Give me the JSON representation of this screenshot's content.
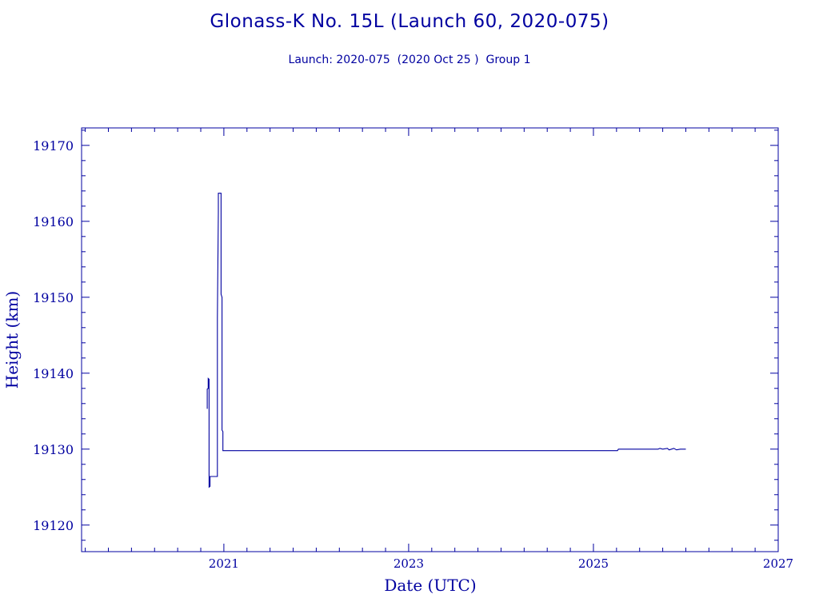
{
  "colors": {
    "axis": "#0000a0",
    "series": "#0000a0",
    "background": "#ffffff"
  },
  "chart_data": {
    "type": "line",
    "title": "Glonass-K No. 15L (Launch 60, 2020-075)",
    "subtitle": "Launch: 2020-075  (2020 Oct 25 )  Group 1",
    "xlabel": "Date (UTC)",
    "ylabel": "Height (km)",
    "xlim": [
      2019.46,
      2027.0
    ],
    "ylim": [
      19116.5,
      19172.3
    ],
    "x_ticks": [
      2021,
      2023,
      2025,
      2027
    ],
    "x_tick_labels": [
      "2021",
      "2023",
      "2025",
      "2027"
    ],
    "y_ticks": [
      19120,
      19130,
      19140,
      19150,
      19160,
      19170
    ],
    "y_tick_labels": [
      "19120",
      "19130",
      "19140",
      "19150",
      "19160",
      "19170"
    ],
    "grid": false,
    "series": [
      {
        "x": [
          2020.82,
          2020.82,
          2020.83,
          2020.83,
          2020.84,
          2020.84,
          2020.85,
          2020.85,
          2020.85,
          2020.86,
          2020.86,
          2020.93,
          2020.93,
          2020.93,
          2020.94,
          2020.94,
          2020.95,
          2020.95,
          2020.97,
          2020.97,
          2020.98,
          2020.98,
          2020.99,
          2020.99,
          2021.0,
          2021.05,
          2025.26,
          2025.27,
          2025.7,
          2025.72,
          2025.75,
          2025.8,
          2025.82,
          2025.87,
          2025.9,
          2025.94,
          2026.0
        ],
        "y": [
          19135.3,
          19137.9,
          19138.0,
          19139.3,
          19139.2,
          19125.0,
          19125.1,
          19125.5,
          19126.4,
          19126.4,
          19126.4,
          19126.4,
          19147.1,
          19147.3,
          19161.2,
          19163.7,
          19163.7,
          19163.7,
          19163.7,
          19150.4,
          19150.0,
          19132.5,
          19132.3,
          19129.8,
          19129.8,
          19129.8,
          19129.8,
          19130.0,
          19130.0,
          19130.1,
          19130.0,
          19130.1,
          19129.9,
          19130.1,
          19129.9,
          19130.0,
          19130.0
        ]
      }
    ]
  }
}
